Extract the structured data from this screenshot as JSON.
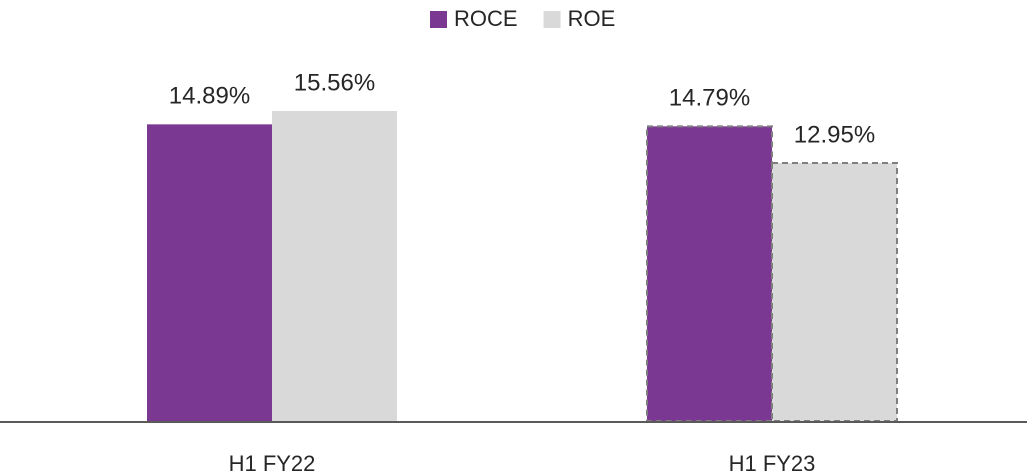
{
  "chart_data": {
    "type": "bar",
    "categories": [
      "H1 FY22",
      "H1 FY23"
    ],
    "series": [
      {
        "name": "ROCE",
        "color": "#7b3892",
        "values": [
          14.89,
          14.79
        ],
        "value_labels": [
          "14.89%",
          "14.79%"
        ]
      },
      {
        "name": "ROE",
        "color": "#d9d9d9",
        "values": [
          15.56,
          12.95
        ],
        "value_labels": [
          "15.56%",
          "12.95%"
        ]
      }
    ],
    "category_border": [
      "none",
      "dashed"
    ],
    "legend": "top"
  }
}
